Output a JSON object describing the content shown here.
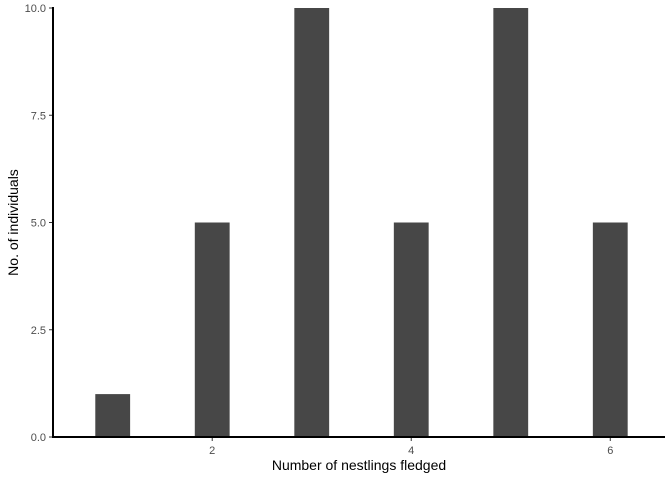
{
  "chart_data": {
    "type": "bar",
    "title": "",
    "xlabel": "Number of nestlings fledged",
    "ylabel": "No. of individuals",
    "x": [
      1,
      2,
      3,
      4,
      5,
      6
    ],
    "values": [
      1,
      5,
      10,
      5,
      10,
      5
    ],
    "xlim": [
      0.4,
      6.55
    ],
    "ylim": [
      0,
      10
    ],
    "bar_width": 0.35,
    "x_ticks": [
      2,
      4,
      6
    ],
    "x_tick_labels": [
      "2",
      "4",
      "6"
    ],
    "y_ticks": [
      0,
      2.5,
      5,
      7.5,
      10
    ],
    "y_tick_labels": [
      "0.0",
      "2.5",
      "5.0",
      "7.5",
      "10.0"
    ],
    "grid": false,
    "legend": "none",
    "bar_color": "#474747",
    "axis_color": "#000000",
    "tick_label_color": "#4d4d4d"
  }
}
